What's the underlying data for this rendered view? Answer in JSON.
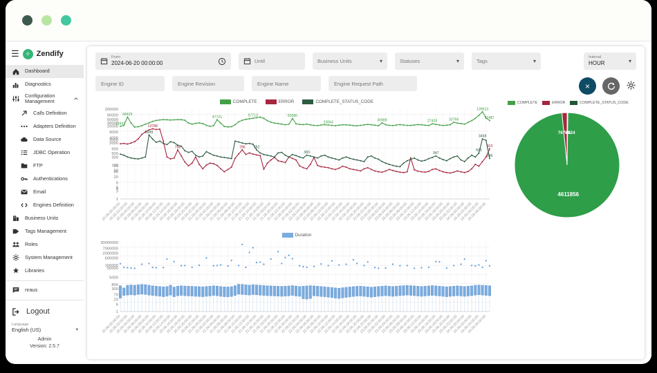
{
  "titlebar": {
    "dots": [
      "#3e5a4e",
      "#b8e6a1",
      "#43c79e"
    ]
  },
  "sidebar": {
    "app_name": "Zendify",
    "items": [
      {
        "icon": "home",
        "label": "Dashboard",
        "active": true
      },
      {
        "icon": "chart-bars",
        "label": "Diagnostics"
      },
      {
        "icon": "sliders",
        "label": "Configuration Management",
        "expandable": true
      },
      {
        "icon": "arrow-up-right",
        "label": "Calls Definition",
        "sub": true
      },
      {
        "icon": "adapters-dots",
        "label": "Adapters Definition",
        "sub": true
      },
      {
        "icon": "cloud",
        "label": "Data Source",
        "sub": true
      },
      {
        "icon": "list",
        "label": "JDBC Operation",
        "sub": true
      },
      {
        "icon": "folder",
        "label": "FTP",
        "sub": true
      },
      {
        "icon": "key",
        "label": "Authentications",
        "sub": true
      },
      {
        "icon": "envelope",
        "label": "Email",
        "sub": true
      },
      {
        "icon": "code",
        "label": "Engines Definition",
        "sub": true
      },
      {
        "icon": "building",
        "label": "Business Units"
      },
      {
        "icon": "tag",
        "label": "Tags Management"
      },
      {
        "icon": "people",
        "label": "Roles"
      },
      {
        "icon": "gear",
        "label": "System Management"
      },
      {
        "icon": "puzzle",
        "label": "Libraries"
      },
      {
        "icon": "chat",
        "label": "nraus",
        "divider_before": true
      }
    ],
    "logout_label": "Logout",
    "language_label": "Language",
    "language_value": "English (US)",
    "user": "Admin",
    "version": "Version: 2.5.7"
  },
  "filters": {
    "from_label": "From",
    "from_value": "2024-06-20 00:00:00",
    "until_placeholder": "Until",
    "business_units": "Business Units",
    "statuses": "Statuses",
    "tags": "Tags",
    "interval_label": "Interval",
    "interval_value": "HOUR",
    "engine_id": "Engine ID",
    "engine_revision": "Engine Revision",
    "engine_name": "Engine Name",
    "engine_request_path": "Engine Request Path"
  },
  "chart_data": [
    {
      "type": "line",
      "y_scale": "log",
      "ylim": [
        1,
        200000
      ],
      "y_ticks": [
        200000,
        90000,
        50000,
        30000,
        20000,
        9000,
        4000,
        3000,
        2000,
        900,
        500,
        300,
        100,
        90,
        50,
        40,
        20,
        9,
        5,
        4,
        3,
        1
      ],
      "legend_position": "top",
      "x_labels": [
        "20.06.00:00:00",
        "20.06.02:00:00",
        "20.06.04:00:00",
        "20.06.06:00:00",
        "20.06.08:00:00",
        "20.06.10:00:00",
        "20.06.12:00:00",
        "20.06.14:00:00",
        "20.06.16:00:00",
        "20.06.18:00:00",
        "20.06.20:00:00",
        "20.06.22:00:00",
        "21.06.00:00:00",
        "21.06.02:00:00",
        "21.06.04:00:00",
        "21.06.06:00:00",
        "21.06.08:00:00",
        "21.06.10:00:00",
        "21.06.12:00:00",
        "21.06.14:00:00",
        "21.06.16:00:00",
        "21.06.18:00:00",
        "21.06.20:00:00",
        "21.06.22:00:00",
        "22.06.00:00:00",
        "22.06.02:00:00",
        "22.06.04:00:00",
        "22.06.06:00:00",
        "22.06.08:00:00",
        "22.06.10:00:00",
        "22.06.12:00:00",
        "22.06.14:00:00",
        "22.06.16:00:00",
        "22.06.18:00:00",
        "22.06.20:00:00",
        "22.06.22:00:00",
        "23.06.00:00:00",
        "23.06.02:00:00",
        "23.06.04:00:00",
        "23.06.06:00:00",
        "23.06.08:00:00",
        "23.06.10:00:00",
        "23.06.12:00:00",
        "23.06.14:00:00",
        "23.06.16:00:00",
        "23.06.18:00:00",
        "23.06.20:00:00",
        "23.06.22:00:00",
        "24.06.00:00:00",
        "24.06.02:00:00",
        "24.06.04:00:00",
        "24.06.06:00:00"
      ],
      "series": [
        {
          "name": "COMPLETE",
          "color": "#43a047",
          "values": [
            19441,
            22000,
            68429,
            30000,
            17500,
            18200,
            21000,
            26000,
            31000,
            38000,
            43000,
            46000,
            48000,
            47000,
            45500,
            46500,
            48000,
            47500,
            44000,
            30000,
            26000,
            29000,
            31000,
            28000,
            22000,
            19500,
            21000,
            47721,
            30000,
            19000,
            17800,
            18500,
            24000,
            36000,
            44000,
            50000,
            54000,
            57713,
            62000,
            68000,
            57000,
            42000,
            34000,
            30000,
            28500,
            26000,
            24000,
            25500,
            55586,
            27000,
            25000,
            24500,
            26000,
            23500,
            22000,
            21500,
            23000,
            24000,
            23064,
            22000,
            21000,
            22500,
            24000,
            23500,
            22800,
            21500,
            20800,
            22000,
            23500,
            25000,
            24000,
            22500,
            21000,
            30989,
            24000,
            22000,
            21500,
            23000,
            24500,
            23000,
            22000,
            21800,
            23200,
            24500,
            23800,
            22500,
            21500,
            27433,
            25000,
            23000,
            21800,
            22500,
            24000,
            33766,
            30000,
            28000,
            26000,
            33000,
            42000,
            57000,
            86000,
            139613,
            60000,
            42481
          ],
          "point_labels": [
            [
              0,
              "19441"
            ],
            [
              2,
              "68429"
            ],
            [
              27,
              "47721"
            ],
            [
              37,
              "57713"
            ],
            [
              48,
              "55586"
            ],
            [
              58,
              "23064"
            ],
            [
              73,
              "30989"
            ],
            [
              87,
              "27433"
            ],
            [
              93,
              "33766"
            ],
            [
              101,
              "139613"
            ],
            [
              103,
              "42481"
            ]
          ]
        },
        {
          "name": "ERROR",
          "color": "#a6263e",
          "values": [
            1800,
            1900,
            1750,
            2000,
            2400,
            3500,
            6500,
            9000,
            12000,
            13788,
            12500,
            13200,
            2600,
            300,
            230,
            260,
            788,
            350,
            150,
            90,
            130,
            300,
            110,
            60,
            100,
            130,
            120,
            95,
            60,
            40,
            55,
            75,
            250,
            450,
            786,
            420,
            520,
            444,
            395,
            360,
            57,
            130,
            200,
            280,
            180,
            160,
            140,
            300,
            250,
            200,
            90,
            70,
            60,
            110,
            280,
            95,
            80,
            75,
            70,
            60,
            55,
            65,
            85,
            75,
            60,
            55,
            50,
            45,
            60,
            70,
            55,
            45,
            40,
            38,
            45,
            55,
            48,
            42,
            38,
            36,
            40,
            260,
            52,
            44,
            40,
            38,
            42,
            55,
            60,
            48,
            40,
            36,
            34,
            38,
            45,
            40,
            36,
            42,
            60,
            110,
            85,
            160,
            300,
            903
          ],
          "point_labels": [
            [
              9,
              "13788"
            ],
            [
              16,
              "788"
            ],
            [
              34,
              "786"
            ],
            [
              103,
              "903"
            ]
          ]
        },
        {
          "name": "COMPLETE_STATUS_CODE",
          "color": "#2e5c41",
          "values": [
            440,
            380,
            300,
            260,
            240,
            230,
            260,
            300,
            5949,
            3400,
            2200,
            2600,
            1900,
            1600,
            2400,
            2100,
            1500,
            1300,
            700,
            560,
            640,
            380,
            300,
            340,
            620,
            480,
            380,
            340,
            300,
            280,
            260,
            240,
            2600,
            2300,
            2000,
            1800,
            1900,
            1700,
            782,
            520,
            420,
            380,
            340,
            300,
            520,
            560,
            380,
            300,
            420,
            360,
            300,
            260,
            383,
            340,
            300,
            260,
            340,
            380,
            300,
            260,
            230,
            200,
            260,
            300,
            250,
            220,
            200,
            180,
            160,
            300,
            340,
            260,
            220,
            160,
            130,
            110,
            95,
            85,
            80,
            130,
            180,
            220,
            260,
            200,
            170,
            190,
            240,
            280,
            347,
            260,
            210,
            180,
            240,
            300,
            340,
            200,
            160,
            260,
            380,
            300,
            505,
            3458,
            2900,
            246
          ],
          "point_labels": [
            [
              8,
              "5949"
            ],
            [
              38,
              "782"
            ],
            [
              52,
              "383"
            ],
            [
              88,
              "347"
            ],
            [
              100,
              "505"
            ],
            [
              101,
              "3458"
            ],
            [
              103,
              "246"
            ]
          ]
        }
      ]
    },
    {
      "type": "pie",
      "slices": [
        {
          "label": "COMPLETE",
          "value": 4611856,
          "color": "#2e9e49",
          "show_label": true
        },
        {
          "label": "ERROR",
          "value": 76724,
          "color": "#a6263e",
          "show_label": true
        },
        {
          "label": "COMPLETE_STATUS_CODE",
          "value": 8924,
          "color": "#1e5631",
          "show_label": true
        }
      ],
      "legend": [
        {
          "name": "COMPLETE",
          "color": "#43a047"
        },
        {
          "name": "ERROR",
          "color": "#a6263e"
        },
        {
          "name": "COMPLETE_STATUS_CODE",
          "color": "#1e5631"
        }
      ]
    },
    {
      "type": "range-bar",
      "name": "Duration",
      "color": "#7aace0",
      "border_color": "#5b8fc9",
      "y_scale": "log",
      "ylim": [
        1,
        30000000
      ],
      "y_ticks": [
        30000000,
        7000000,
        2000000,
        600000,
        100000,
        50000,
        5000,
        800,
        300,
        70,
        20,
        6,
        1
      ],
      "bars_low": [
        28,
        55,
        60,
        65,
        60,
        70,
        75,
        70,
        60,
        55,
        50,
        45,
        40,
        45,
        60,
        40,
        50,
        55,
        50,
        48,
        46,
        44,
        42,
        40,
        44,
        48,
        55,
        50,
        44,
        40,
        38,
        42,
        55,
        75,
        70,
        65,
        60,
        68,
        64,
        58,
        55,
        52,
        50,
        48,
        46,
        44,
        46,
        50,
        55,
        48,
        44,
        24,
        22,
        26,
        50,
        46,
        42,
        40,
        36,
        32,
        28,
        26,
        30,
        34,
        38,
        42,
        46,
        48,
        44,
        40,
        36,
        40,
        44,
        48,
        52,
        48,
        44,
        48,
        52,
        56,
        60,
        56,
        52,
        48,
        44,
        48,
        52,
        56,
        52,
        48,
        44,
        40,
        44,
        48,
        52,
        48,
        44,
        48,
        52,
        60,
        64,
        60,
        56,
        52
      ],
      "bars_high": [
        620,
        360,
        700,
        750,
        700,
        800,
        850,
        820,
        700,
        620,
        560,
        520,
        480,
        520,
        700,
        450,
        560,
        620,
        580,
        560,
        540,
        520,
        500,
        480,
        520,
        560,
        620,
        580,
        520,
        480,
        460,
        500,
        640,
        900,
        860,
        780,
        720,
        820,
        760,
        700,
        660,
        620,
        600,
        580,
        560,
        540,
        560,
        600,
        640,
        580,
        520,
        560,
        600,
        640,
        600,
        560,
        520,
        480,
        440,
        400,
        360,
        340,
        380,
        420,
        460,
        500,
        540,
        560,
        520,
        480,
        440,
        480,
        520,
        560,
        600,
        560,
        520,
        560,
        600,
        640,
        680,
        640,
        600,
        560,
        520,
        560,
        600,
        640,
        600,
        560,
        520,
        480,
        520,
        560,
        600,
        560,
        520,
        560,
        600,
        700,
        740,
        700,
        660,
        620
      ],
      "dots": [
        [
          0,
          150000
        ],
        [
          1,
          60000
        ],
        [
          2,
          55000
        ],
        [
          3,
          50000
        ],
        [
          4,
          48000
        ],
        [
          6,
          130000
        ],
        [
          8,
          160000
        ],
        [
          9,
          60000
        ],
        [
          10,
          55000
        ],
        [
          12,
          58000
        ],
        [
          13,
          480000
        ],
        [
          15,
          250000
        ],
        [
          17,
          90000
        ],
        [
          18,
          95000
        ],
        [
          20,
          62000
        ],
        [
          22,
          100000
        ],
        [
          24,
          640000
        ],
        [
          26,
          90000
        ],
        [
          27,
          95000
        ],
        [
          28,
          110000
        ],
        [
          30,
          85000
        ],
        [
          31,
          340000
        ],
        [
          33,
          95000
        ],
        [
          34,
          18000000
        ],
        [
          35,
          60000
        ],
        [
          36,
          2500000
        ],
        [
          37,
          8000000
        ],
        [
          38,
          200000
        ],
        [
          39,
          220000
        ],
        [
          40,
          130000
        ],
        [
          42,
          480000
        ],
        [
          44,
          3000000
        ],
        [
          45,
          160000
        ],
        [
          46,
          700000
        ],
        [
          47,
          1200000
        ],
        [
          48,
          520000
        ],
        [
          50,
          90000
        ],
        [
          51,
          70000
        ],
        [
          52,
          62000
        ],
        [
          54,
          75000
        ],
        [
          56,
          140000
        ],
        [
          58,
          95000
        ],
        [
          59,
          300000
        ],
        [
          61,
          110000
        ],
        [
          63,
          130000
        ],
        [
          65,
          400000
        ],
        [
          66,
          160000
        ],
        [
          68,
          95000
        ],
        [
          69,
          230000
        ],
        [
          71,
          58000
        ],
        [
          72,
          48000
        ],
        [
          74,
          52000
        ],
        [
          76,
          130000
        ],
        [
          78,
          90000
        ],
        [
          80,
          95000
        ],
        [
          82,
          48000
        ],
        [
          84,
          56000
        ],
        [
          86,
          62000
        ],
        [
          88,
          250000
        ],
        [
          89,
          240000
        ],
        [
          91,
          52000
        ],
        [
          93,
          95000
        ],
        [
          95,
          130000
        ],
        [
          96,
          480000
        ],
        [
          98,
          95000
        ],
        [
          99,
          85000
        ],
        [
          100,
          110000
        ],
        [
          101,
          60000
        ],
        [
          102,
          320000
        ],
        [
          103,
          90000
        ]
      ]
    }
  ]
}
